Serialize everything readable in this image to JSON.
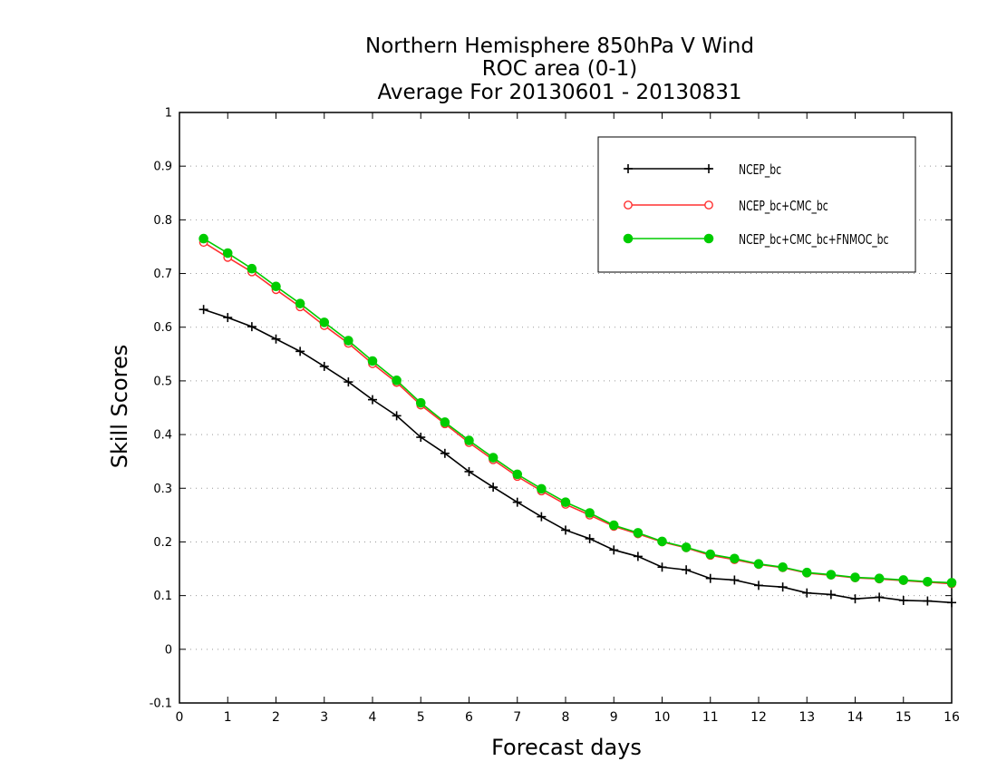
{
  "chart_data": {
    "type": "line",
    "title_lines": [
      "Northern Hemisphere 850hPa V Wind",
      "ROC area (0-1)",
      "Average For 20130601 - 20130831"
    ],
    "xlabel": "Forecast days",
    "ylabel": "Skill Scores",
    "xlim": [
      0,
      16
    ],
    "ylim": [
      -0.1,
      1
    ],
    "x_ticks": [
      0,
      1,
      2,
      3,
      4,
      5,
      6,
      7,
      8,
      9,
      10,
      11,
      12,
      13,
      14,
      15,
      16
    ],
    "y_ticks": [
      -0.1,
      0,
      0.1,
      0.2,
      0.3,
      0.4,
      0.5,
      0.6,
      0.7,
      0.8,
      0.9,
      1
    ],
    "y_tick_labels": [
      "-0.1",
      "0",
      "0.1",
      "0.2",
      "0.3",
      "0.4",
      "0.5",
      "0.6",
      "0.7",
      "0.8",
      "0.9",
      "1"
    ],
    "grid": "horizontal dotted",
    "legend_position": "top-right",
    "x": [
      0.5,
      1,
      1.5,
      2,
      2.5,
      3,
      3.5,
      4,
      4.5,
      5,
      5.5,
      6,
      6.5,
      7,
      7.5,
      8,
      8.5,
      9,
      9.5,
      10,
      10.5,
      11,
      11.5,
      12,
      12.5,
      13,
      13.5,
      14,
      14.5,
      15,
      15.5,
      16
    ],
    "series": [
      {
        "name": "NCEP_bc",
        "color": "#000000",
        "marker": "plus",
        "values": [
          0.633,
          0.618,
          0.601,
          0.578,
          0.555,
          0.527,
          0.498,
          0.465,
          0.435,
          0.395,
          0.365,
          0.331,
          0.302,
          0.274,
          0.247,
          0.222,
          0.206,
          0.185,
          0.173,
          0.153,
          0.148,
          0.132,
          0.129,
          0.119,
          0.116,
          0.105,
          0.102,
          0.094,
          0.097,
          0.091,
          0.09,
          0.087
        ]
      },
      {
        "name": "NCEP_bc+CMC_bc",
        "color": "#ff3030",
        "marker": "open-circle",
        "values": [
          0.758,
          0.73,
          0.703,
          0.67,
          0.638,
          0.603,
          0.57,
          0.532,
          0.497,
          0.455,
          0.42,
          0.385,
          0.353,
          0.322,
          0.295,
          0.27,
          0.25,
          0.229,
          0.215,
          0.2,
          0.189,
          0.175,
          0.167,
          0.158,
          0.152,
          0.142,
          0.138,
          0.133,
          0.131,
          0.128,
          0.125,
          0.122
        ]
      },
      {
        "name": "NCEP_bc+CMC_bc+FNMOC_bc",
        "color": "#00cc00",
        "marker": "filled-circle",
        "values": [
          0.765,
          0.738,
          0.709,
          0.676,
          0.644,
          0.609,
          0.575,
          0.537,
          0.501,
          0.459,
          0.423,
          0.389,
          0.357,
          0.326,
          0.299,
          0.274,
          0.254,
          0.231,
          0.217,
          0.201,
          0.19,
          0.177,
          0.169,
          0.159,
          0.153,
          0.143,
          0.139,
          0.134,
          0.132,
          0.129,
          0.126,
          0.124
        ]
      }
    ]
  }
}
